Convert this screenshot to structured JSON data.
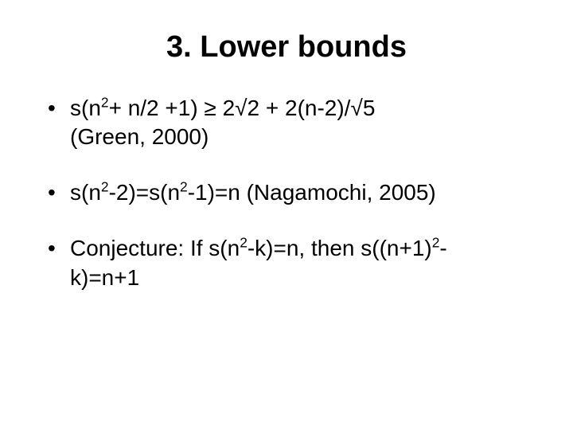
{
  "slide": {
    "background_color": "#ffffff",
    "text_color": "#000000",
    "font_family": "Arial",
    "title": "3. Lower bounds",
    "title_fontsize": 38,
    "title_fontweight": "bold",
    "body_fontsize": 28,
    "bullets": [
      {
        "b1_part1": "s(n",
        "b1_sup1": "2",
        "b1_part2": "+ n/2 +1) ≥ 2√2 + 2(n-2)/√5",
        "b1_line2": "(Green, 2000)"
      },
      {
        "b2_part1": "s(n",
        "b2_sup1": "2",
        "b2_part2": "-2)=s(n",
        "b2_sup2": "2",
        "b2_part3": "-1)=n (Nagamochi, 2005)"
      },
      {
        "b3_part1": "Conjecture: If s(n",
        "b3_sup1": "2",
        "b3_part2": "-k)=n, then s((n+1)",
        "b3_sup2": "2",
        "b3_part3": "-",
        "b3_line2": "k)=n+1"
      }
    ]
  }
}
